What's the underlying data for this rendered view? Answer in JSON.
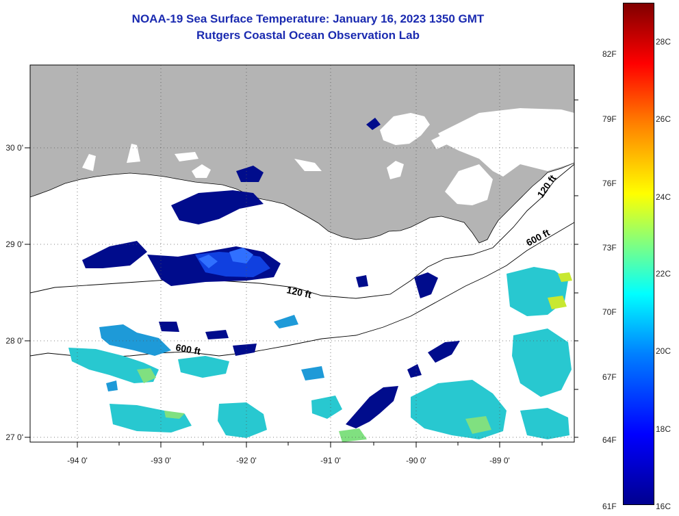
{
  "title": {
    "line1": "NOAA-19 Sea Surface Temperature:  January 16, 2023 1350 GMT",
    "line2": "Rutgers Coastal Ocean Observation Lab"
  },
  "axes": {
    "longitude_labels": [
      "-94 0'",
      "-93 0'",
      "-92 0'",
      "-91 0'",
      "-90 0'",
      "-89 0'"
    ],
    "latitude_labels": [
      "30 0'",
      "29 0'",
      "28 0'",
      "27 0'"
    ]
  },
  "isobath_labels": [
    {
      "id": "i1",
      "text": "120 ft"
    },
    {
      "id": "i2",
      "text": "600 ft"
    },
    {
      "id": "i3",
      "text": "120 ft"
    },
    {
      "id": "i4",
      "text": "600 ft"
    }
  ],
  "colorbar": {
    "fahrenheit": [
      "82F",
      "79F",
      "76F",
      "73F",
      "70F",
      "67F",
      "64F",
      "61F"
    ],
    "celsius": [
      "28C",
      "26C",
      "24C",
      "22C",
      "20C",
      "18C",
      "16C"
    ]
  },
  "colors": {
    "land": "#b4b4b4",
    "title": "#1a2ab0",
    "cold": "#000c8c",
    "cool": "#1040e0",
    "mid": "#28c8d0",
    "warm": "#d8e820"
  }
}
